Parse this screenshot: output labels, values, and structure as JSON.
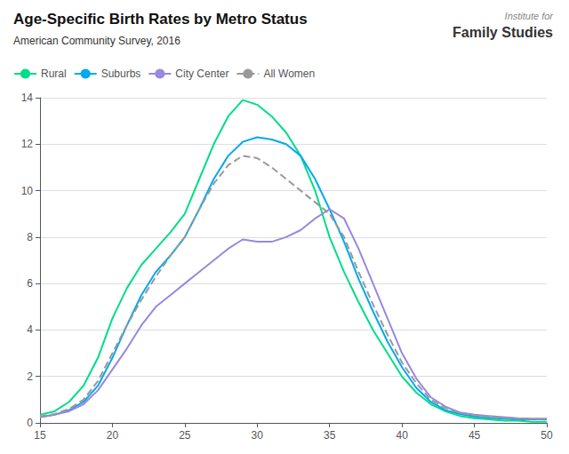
{
  "chart_data": {
    "type": "line",
    "title": "Age-Specific Birth Rates by Metro Status",
    "subtitle": "American Community Survey, 2016",
    "annotations": [
      "Institute for",
      "Family Studies"
    ],
    "x": [
      15,
      16,
      17,
      18,
      19,
      20,
      21,
      22,
      23,
      24,
      25,
      26,
      27,
      28,
      29,
      30,
      31,
      32,
      33,
      34,
      35,
      36,
      37,
      38,
      39,
      40,
      41,
      42,
      43,
      44,
      45,
      46,
      47,
      48,
      49,
      50
    ],
    "series": [
      {
        "name": "Rural",
        "color": "#00DD88",
        "line_style": "solid",
        "values": [
          0.35,
          0.5,
          0.9,
          1.6,
          2.8,
          4.5,
          5.8,
          6.8,
          7.5,
          8.2,
          9.0,
          10.5,
          12.0,
          13.2,
          13.9,
          13.7,
          13.2,
          12.5,
          11.5,
          10.0,
          8.0,
          6.5,
          5.2,
          4.0,
          3.0,
          2.0,
          1.3,
          0.8,
          0.5,
          0.3,
          0.2,
          0.15,
          0.1,
          0.1,
          0.05,
          0.05
        ]
      },
      {
        "name": "Suburbs",
        "color": "#00AAEE",
        "line_style": "solid",
        "values": [
          0.25,
          0.35,
          0.55,
          0.9,
          1.6,
          2.8,
          4.2,
          5.5,
          6.5,
          7.2,
          8.0,
          9.2,
          10.5,
          11.5,
          12.1,
          12.3,
          12.2,
          12.0,
          11.5,
          10.5,
          9.2,
          7.8,
          6.2,
          4.8,
          3.5,
          2.4,
          1.5,
          0.9,
          0.55,
          0.38,
          0.28,
          0.22,
          0.18,
          0.15,
          0.15,
          0.15
        ]
      },
      {
        "name": "City Center",
        "color": "#9988DD",
        "line_style": "solid",
        "values": [
          0.25,
          0.35,
          0.5,
          0.8,
          1.4,
          2.3,
          3.2,
          4.2,
          5.0,
          5.5,
          6.0,
          6.5,
          7.0,
          7.5,
          7.9,
          7.8,
          7.8,
          8.0,
          8.3,
          8.8,
          9.2,
          8.8,
          7.5,
          6.0,
          4.5,
          3.0,
          1.9,
          1.1,
          0.7,
          0.45,
          0.35,
          0.3,
          0.25,
          0.2,
          0.18,
          0.18
        ]
      },
      {
        "name": "All Women",
        "color": "#999999",
        "line_style": "dashed",
        "values": [
          0.28,
          0.38,
          0.6,
          1.0,
          1.8,
          3.0,
          4.2,
          5.3,
          6.3,
          7.2,
          8.0,
          9.2,
          10.3,
          11.1,
          11.5,
          11.4,
          11.0,
          10.5,
          10.0,
          9.5,
          9.0,
          8.0,
          6.5,
          5.1,
          3.8,
          2.6,
          1.7,
          1.0,
          0.65,
          0.44,
          0.33,
          0.27,
          0.22,
          0.18,
          0.16,
          0.16
        ]
      }
    ],
    "xlim": [
      15,
      50
    ],
    "xticks": [
      15,
      20,
      25,
      30,
      35,
      40,
      45,
      50
    ],
    "ylim": [
      0,
      14
    ],
    "yticks": [
      0,
      2,
      4,
      6,
      8,
      10,
      12,
      14
    ],
    "grid": true,
    "legend": "top"
  }
}
